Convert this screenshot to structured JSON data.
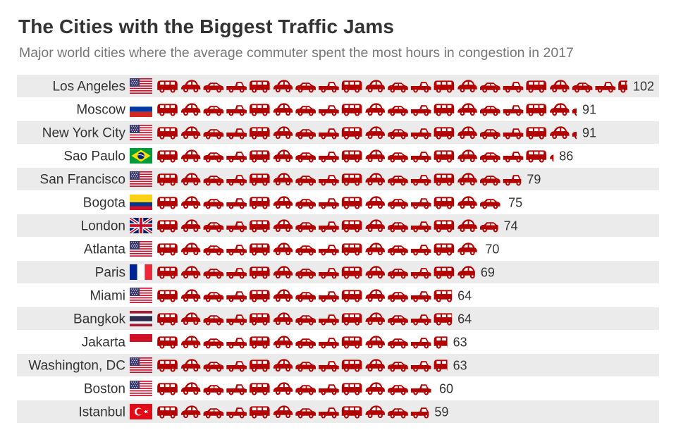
{
  "title": "The Cities with the Biggest Traffic Jams",
  "subtitle": "Major world cities where the average commuter spent the most hours in congestion in 2017",
  "colors": {
    "car": "#b30000",
    "row_stripe": "#ebebeb",
    "text": "#333333",
    "subtitle": "#777777"
  },
  "icons": {
    "unit": "car-icon",
    "note": "each red car pictogram represents ~4.2 hours spent in congestion"
  },
  "chart_data": {
    "type": "bar",
    "style": "pictogram",
    "title": "The Cities with the Biggest Traffic Jams",
    "subtitle": "Major world cities where the average commuter spent the most hours in congestion in 2017",
    "categories": [
      "Los Angeles",
      "Moscow",
      "New York City",
      "Sao Paulo",
      "San Francisco",
      "Bogota",
      "London",
      "Atlanta",
      "Paris",
      "Miami",
      "Bangkok",
      "Jakarta",
      "Washington, DC",
      "Boston",
      "Istanbul"
    ],
    "values": [
      102,
      91,
      91,
      86,
      79,
      75,
      74,
      70,
      69,
      64,
      64,
      63,
      63,
      60,
      59
    ],
    "flags": [
      "us",
      "ru",
      "us",
      "br",
      "us",
      "co",
      "gb",
      "us",
      "fr",
      "us",
      "th",
      "id",
      "us",
      "us",
      "tr"
    ],
    "xlabel": "",
    "ylabel": "",
    "xlim": [
      0,
      102
    ],
    "unit": "hours"
  }
}
